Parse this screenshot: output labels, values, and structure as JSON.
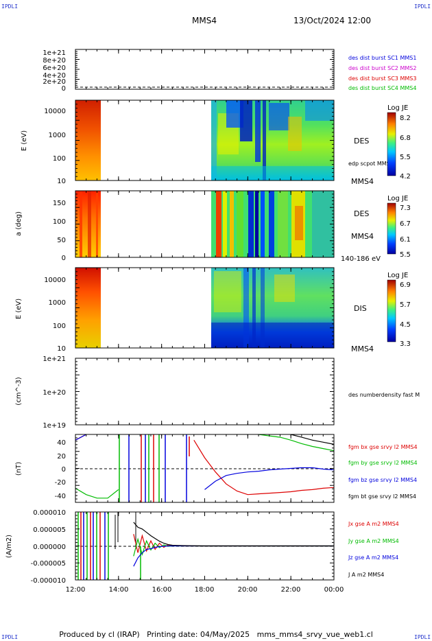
{
  "corner_label": "IPDLI",
  "header": {
    "title": "MMS4",
    "date": "13/Oct/2024 12:00"
  },
  "footer": "Produced by cl (IRAP)   Printing date: 04/May/2025   mms_mms4_srvy_vue_web1.cl",
  "x_ticks": [
    "12:00",
    "14:00",
    "16:00",
    "18:00",
    "20:00",
    "22:00",
    "00:00"
  ],
  "colors": {
    "red": "#dd0000",
    "green": "#00bb00",
    "blue": "#0000dd",
    "black": "#000000",
    "magenta": "#cc00cc"
  },
  "chart_data": [
    {
      "type": "line",
      "panel": "dist-burst",
      "yticks": [
        "1e+21",
        "8e+20",
        "6e+20",
        "4e+20",
        "2e+20",
        "0"
      ],
      "legend": [
        {
          "label": "des dist burst SC1 MMS1",
          "color": "#0000dd"
        },
        {
          "label": "des dist burst SC2 MMS2",
          "color": "#cc00cc"
        },
        {
          "label": "des dist burst SC3 MMS3",
          "color": "#dd0000"
        },
        {
          "label": "des dist burst SC4 MMS4",
          "color": "#00bb00"
        }
      ]
    },
    {
      "type": "heatmap",
      "panel": "des-energy",
      "ylabel": "E (eV)",
      "yscale": "log",
      "yticks": [
        "10000",
        "1000",
        "100",
        "10"
      ],
      "label": "DES",
      "label2": "MMS4",
      "overlay": "edp scpot MMS4",
      "cbar_title": "Log JE",
      "cbar_ticks": [
        "8.2",
        "6.8",
        "5.5",
        "4.2"
      ]
    },
    {
      "type": "heatmap",
      "panel": "des-pitch",
      "ylabel": "a (deg)",
      "yticks": [
        "150",
        "100",
        "50",
        "0"
      ],
      "label": "DES",
      "label2": "MMS4",
      "label3": "140-186 eV",
      "cbar_title": "Log JE",
      "cbar_ticks": [
        "7.3",
        "6.7",
        "6.1",
        "5.5"
      ]
    },
    {
      "type": "heatmap",
      "panel": "dis-energy",
      "ylabel": "E (eV)",
      "yscale": "log",
      "yticks": [
        "10000",
        "1000",
        "100",
        "10"
      ],
      "label": "DIS",
      "label2": "MMS4",
      "cbar_title": "Log JE",
      "cbar_ticks": [
        "6.9",
        "5.7",
        "4.5",
        "3.3"
      ]
    },
    {
      "type": "line",
      "panel": "density",
      "ylabel": "(cm^-3)",
      "yscale": "log",
      "yticks": [
        "1e+21",
        "1e+20",
        "1e+19"
      ],
      "legend": [
        {
          "label": "des numberdensity fast M",
          "color": "#000000"
        }
      ]
    },
    {
      "type": "line",
      "panel": "fgm",
      "ylabel": "(nT)",
      "ylim": [
        -48,
        48
      ],
      "yticks": [
        "40",
        "20",
        "0",
        "-20",
        "-40"
      ],
      "x": [
        12,
        12.5,
        13,
        13.5,
        14,
        14.5,
        15,
        15.5,
        16,
        16.5,
        17,
        17.5,
        18,
        18.5,
        19,
        19.5,
        20,
        20.5,
        21,
        21.5,
        22,
        22.5,
        23,
        23.5,
        24
      ],
      "series": [
        {
          "name": "fgm bx gse srvy l2 MMS4",
          "color": "#dd0000",
          "values": [
            40,
            48,
            null,
            null,
            null,
            null,
            null,
            null,
            null,
            null,
            null,
            40,
            15,
            -5,
            -22,
            -32,
            -37,
            -36,
            -35,
            -34,
            -33,
            -31,
            -30,
            -28,
            -27
          ]
        },
        {
          "name": "fgm by gse srvy l2 MMS4",
          "color": "#00bb00",
          "values": [
            -28,
            -37,
            -42,
            -42,
            -30,
            null,
            null,
            null,
            null,
            null,
            null,
            null,
            null,
            null,
            null,
            null,
            null,
            48,
            46,
            44,
            40,
            35,
            31,
            28,
            25
          ]
        },
        {
          "name": "fgm bz gse srvy l2 MMS4",
          "color": "#0000dd",
          "values": [
            40,
            48,
            null,
            null,
            null,
            null,
            null,
            null,
            null,
            null,
            null,
            null,
            -30,
            -18,
            -10,
            -7,
            -5,
            -4,
            -2,
            -1,
            0,
            1,
            1,
            -1,
            -2
          ]
        },
        {
          "name": "fgm bt gse srvy l2 MMS4",
          "color": "#000000",
          "values": [
            null,
            null,
            null,
            null,
            null,
            null,
            null,
            null,
            null,
            null,
            null,
            null,
            null,
            null,
            null,
            null,
            null,
            null,
            null,
            null,
            48,
            44,
            40,
            37,
            34
          ]
        }
      ]
    },
    {
      "type": "line",
      "panel": "current",
      "ylabel": "(A/m2)",
      "ylim": [
        -1e-05,
        1e-05
      ],
      "yticks": [
        "0.000010",
        "0.000005",
        "0.000000",
        "-0.000005",
        "-0.000010"
      ],
      "x": [
        14.7,
        14.9,
        15.1,
        15.3,
        15.5,
        15.7,
        15.9,
        16.1,
        16.3,
        16.5,
        17,
        18,
        20,
        22,
        24
      ],
      "series": [
        {
          "name": "Jx gse A m2 MMS4",
          "color": "#dd0000",
          "values": [
            3.5e-06,
            -2e-06,
            3e-06,
            -1.5e-06,
            1.5e-06,
            -1e-06,
            8e-07,
            -4e-07,
            3e-07,
            1e-07,
            0,
            0,
            0,
            0,
            0
          ]
        },
        {
          "name": "Jy gse A m2 MMS4",
          "color": "#00bb00",
          "values": [
            -3e-06,
            2e-06,
            -2.5e-06,
            1.5e-06,
            -1.2e-06,
            8e-07,
            -5e-07,
            3e-07,
            -1e-07,
            0,
            0,
            0,
            0,
            0,
            0
          ]
        },
        {
          "name": "Jz gse A m2 MMS4",
          "color": "#0000dd",
          "values": [
            -6e-06,
            -3.5e-06,
            -2e-06,
            -1e-06,
            -8e-07,
            -4e-07,
            -2e-07,
            -1e-07,
            0,
            0,
            0,
            0,
            0,
            0,
            0
          ]
        },
        {
          "name": "J A m2 MMS4",
          "color": "#000000",
          "values": [
            7e-06,
            5.5e-06,
            5e-06,
            4e-06,
            3e-06,
            2.2e-06,
            1.4e-06,
            8e-07,
            4e-07,
            2e-07,
            1e-07,
            0,
            0,
            0,
            0
          ]
        }
      ]
    }
  ]
}
